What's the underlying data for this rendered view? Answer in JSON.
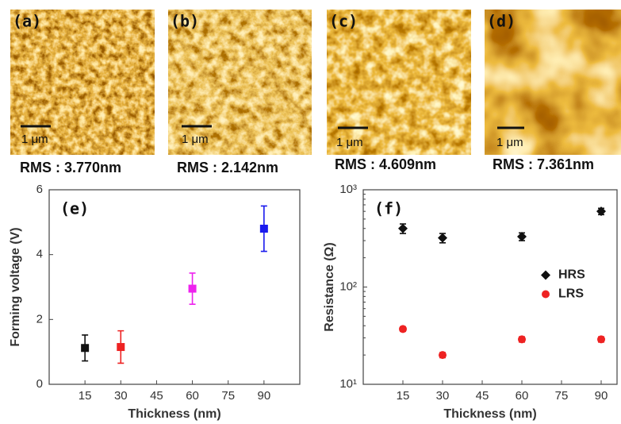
{
  "images": [
    {
      "label": "(a)",
      "scale": "1 μm",
      "rms": "RMS : 3.770nm"
    },
    {
      "label": "(b)",
      "scale": "1 μm",
      "rms": "RMS : 2.142nm"
    },
    {
      "label": "(c)",
      "scale": "1 μm",
      "rms": "RMS : 4.609nm"
    },
    {
      "label": "(d)",
      "scale": "1 μm",
      "rms": "RMS : 7.361nm"
    }
  ],
  "chart_data": [
    {
      "type": "scatter",
      "title": "(e)",
      "x_label": "Thickness (nm)",
      "y_label": "Forming voltage (V)",
      "x": [
        15,
        30,
        60,
        90
      ],
      "series": [
        {
          "marker": "square",
          "colors": [
            "#111111",
            "#ee2222",
            "#ee22ee",
            "#1a1aee"
          ],
          "values": [
            1.12,
            1.15,
            2.95,
            4.8
          ],
          "errors": [
            0.4,
            0.5,
            0.48,
            0.7
          ]
        }
      ],
      "xlim": [
        0,
        105
      ],
      "xticks": [
        15,
        30,
        45,
        60,
        75,
        90
      ],
      "ylim": [
        0,
        6
      ],
      "yticks": [
        0,
        2,
        4,
        6
      ]
    },
    {
      "type": "scatter",
      "title": "(f)",
      "x_label": "Thickness (nm)",
      "y_label": "Resistance (Ω)",
      "log_y": true,
      "legend": "right",
      "x": [
        15,
        30,
        60,
        90
      ],
      "series": [
        {
          "name": "HRS",
          "color": "#111111",
          "marker": "diamond",
          "values": [
            400,
            320,
            330,
            600
          ],
          "errors": [
            45,
            35,
            30,
            45
          ]
        },
        {
          "name": "LRS",
          "color": "#ee2222",
          "marker": "circle",
          "values": [
            37,
            20,
            29,
            29
          ],
          "errors": [
            2,
            1.2,
            1.8,
            1.8
          ]
        }
      ],
      "xlim": [
        0,
        96
      ],
      "xticks": [
        15,
        30,
        45,
        60,
        75,
        90
      ],
      "ylim": [
        10,
        1000
      ],
      "yticks": [
        {
          "value": 10,
          "label": "10¹"
        },
        {
          "value": 100,
          "label": "10²"
        },
        {
          "value": 1000,
          "label": "10³"
        }
      ]
    }
  ]
}
